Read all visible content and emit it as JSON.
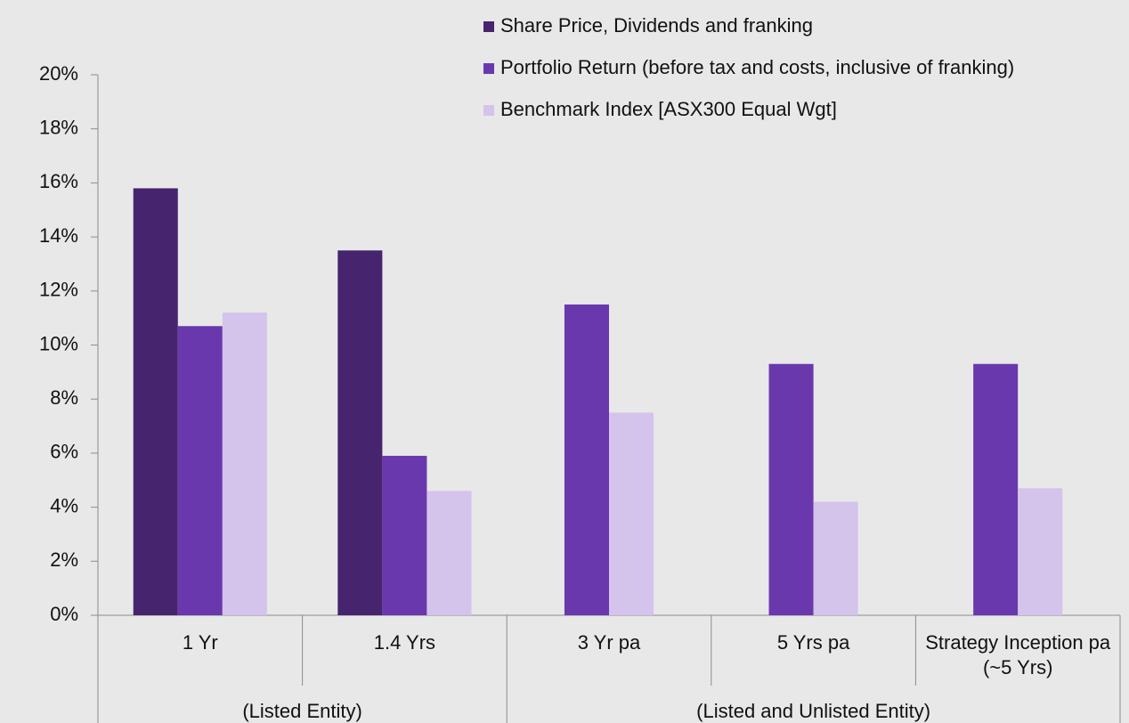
{
  "chart_data": {
    "type": "bar",
    "categories": [
      "1 Yr",
      "1.4 Yrs",
      "3 Yr pa",
      "5 Yrs pa",
      "Strategy Inception pa (~5 Yrs)"
    ],
    "groups": [
      {
        "name": "(Listed Entity)",
        "count": 2
      },
      {
        "name": "(Listed and Unlisted Entity)",
        "count": 3
      }
    ],
    "series": [
      {
        "name": "Share Price, Dividends and franking",
        "color": "#46246e",
        "values": [
          15.8,
          13.5,
          null,
          null,
          null
        ]
      },
      {
        "name": "Portfolio Return (before tax and costs, inclusive of franking)",
        "color": "#6a38ad",
        "values": [
          10.7,
          5.9,
          11.5,
          9.3,
          9.3
        ]
      },
      {
        "name": "Benchmark Index [ASX300 Equal Wgt]",
        "color": "#d4c3eb",
        "values": [
          11.2,
          4.6,
          7.5,
          4.2,
          4.7
        ]
      }
    ],
    "ylim": [
      0,
      20
    ],
    "yticks": [
      {
        "value": 0,
        "label": "0%"
      },
      {
        "value": 2,
        "label": "2%"
      },
      {
        "value": 4,
        "label": "4%"
      },
      {
        "value": 6,
        "label": "6%"
      },
      {
        "value": 8,
        "label": "8%"
      },
      {
        "value": 10,
        "label": "10%"
      },
      {
        "value": 12,
        "label": "12%"
      },
      {
        "value": 14,
        "label": "14%"
      },
      {
        "value": 16,
        "label": "16%"
      },
      {
        "value": 18,
        "label": "18%"
      },
      {
        "value": 20,
        "label": "20%"
      }
    ],
    "grid": false,
    "legend": "top-right"
  }
}
